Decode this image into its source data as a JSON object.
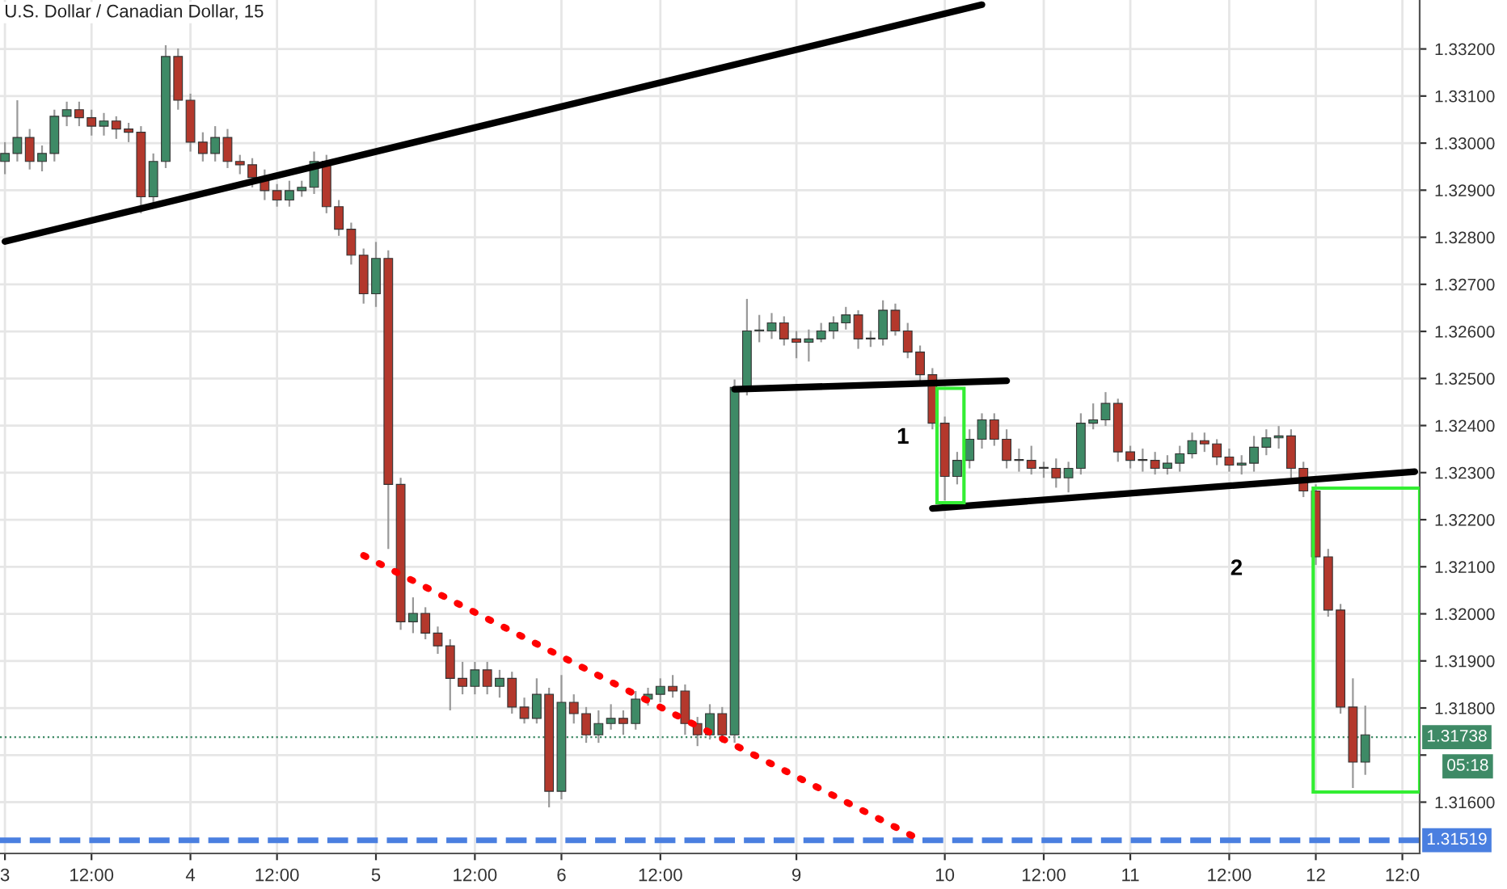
{
  "chart_data": {
    "type": "candlestick",
    "title": "U.S. Dollar / Canadian Dollar, 15",
    "categories": [
      "3",
      null,
      null,
      null,
      null,
      null,
      null,
      "12:00",
      null,
      null,
      null,
      null,
      null,
      null,
      null,
      "4",
      null,
      null,
      null,
      null,
      null,
      null,
      "12:00",
      null,
      null,
      null,
      null,
      null,
      null,
      null,
      "5",
      null,
      null,
      null,
      null,
      null,
      null,
      null,
      "12:00",
      null,
      null,
      null,
      null,
      null,
      null,
      "6",
      null,
      null,
      null,
      null,
      null,
      null,
      null,
      "12:00",
      null,
      null,
      null,
      null,
      null,
      null,
      null,
      null,
      null,
      null,
      "9",
      null,
      null,
      null,
      null,
      null,
      null,
      null,
      null,
      null,
      null,
      null,
      "10",
      null,
      null,
      null,
      null,
      null,
      null,
      null,
      "12:00",
      null,
      null,
      null,
      null,
      null,
      null,
      "11",
      null,
      null,
      null,
      null,
      null,
      null,
      null,
      "12:00",
      null,
      null,
      null,
      null,
      null,
      null,
      "12",
      null,
      null,
      null,
      null,
      null,
      null,
      "12:0",
      null
    ],
    "ohlc": [
      [
        1.32961,
        1.33002,
        1.32934,
        1.32978
      ],
      [
        1.32978,
        1.33091,
        1.32961,
        1.33012
      ],
      [
        1.33012,
        1.3303,
        1.32944,
        1.32961
      ],
      [
        1.32961,
        1.32995,
        1.3294,
        1.32978
      ],
      [
        1.32978,
        1.33071,
        1.32961,
        1.33057
      ],
      [
        1.33057,
        1.33088,
        1.33036,
        1.33071
      ],
      [
        1.33071,
        1.33088,
        1.33036,
        1.33054
      ],
      [
        1.33054,
        1.33071,
        1.33016,
        1.33036
      ],
      [
        1.33036,
        1.33064,
        1.33016,
        1.33047
      ],
      [
        1.33047,
        1.33057,
        1.33009,
        1.3303
      ],
      [
        1.3303,
        1.33043,
        1.33002,
        1.33023
      ],
      [
        1.33023,
        1.33036,
        1.32851,
        1.32886
      ],
      [
        1.32886,
        1.32978,
        1.32865,
        1.32961
      ],
      [
        1.32961,
        1.33208,
        1.32947,
        1.33184
      ],
      [
        1.33184,
        1.33201,
        1.33071,
        1.33091
      ],
      [
        1.33091,
        1.33105,
        1.32982,
        1.33002
      ],
      [
        1.33002,
        1.33023,
        1.32961,
        1.32978
      ],
      [
        1.32978,
        1.33036,
        1.32961,
        1.33012
      ],
      [
        1.33012,
        1.3303,
        1.32947,
        1.32961
      ],
      [
        1.32961,
        1.32975,
        1.32934,
        1.32954
      ],
      [
        1.32954,
        1.32968,
        1.32906,
        1.32927
      ],
      [
        1.32927,
        1.32944,
        1.32879,
        1.32899
      ],
      [
        1.32899,
        1.32913,
        1.32865,
        1.32879
      ],
      [
        1.32879,
        1.3292,
        1.32865,
        1.32899
      ],
      [
        1.32899,
        1.3292,
        1.32886,
        1.32906
      ],
      [
        1.32906,
        1.32982,
        1.32892,
        1.32961
      ],
      [
        1.32961,
        1.32975,
        1.32851,
        1.32865
      ],
      [
        1.32865,
        1.32879,
        1.32803,
        1.32817
      ],
      [
        1.32817,
        1.32831,
        1.32742,
        1.32762
      ],
      [
        1.32762,
        1.32776,
        1.32659,
        1.3268
      ],
      [
        1.3268,
        1.3279,
        1.32652,
        1.32755
      ],
      [
        1.32755,
        1.32772,
        1.32138,
        1.32275
      ],
      [
        1.32275,
        1.32289,
        1.31966,
        1.31983
      ],
      [
        1.31983,
        1.32035,
        1.31959,
        1.32001
      ],
      [
        1.32001,
        1.32014,
        1.31946,
        1.31959
      ],
      [
        1.31959,
        1.31973,
        1.31915,
        1.31932
      ],
      [
        1.31932,
        1.31946,
        1.31795,
        1.31863
      ],
      [
        1.31863,
        1.31898,
        1.31829,
        1.31846
      ],
      [
        1.31846,
        1.31898,
        1.31829,
        1.31881
      ],
      [
        1.31881,
        1.31898,
        1.31829,
        1.31846
      ],
      [
        1.31846,
        1.31881,
        1.31822,
        1.31863
      ],
      [
        1.31863,
        1.31877,
        1.31788,
        1.31802
      ],
      [
        1.31802,
        1.31822,
        1.31767,
        1.31778
      ],
      [
        1.31778,
        1.31863,
        1.31767,
        1.31829
      ],
      [
        1.31829,
        1.31843,
        1.31589,
        1.31623
      ],
      [
        1.31623,
        1.3187,
        1.31606,
        1.31812
      ],
      [
        1.31812,
        1.31829,
        1.31767,
        1.31788
      ],
      [
        1.31788,
        1.31802,
        1.31726,
        1.31743
      ],
      [
        1.31743,
        1.31795,
        1.31726,
        1.31767
      ],
      [
        1.31767,
        1.31808,
        1.31754,
        1.31778
      ],
      [
        1.31778,
        1.31795,
        1.31743,
        1.31767
      ],
      [
        1.31767,
        1.31836,
        1.31754,
        1.31819
      ],
      [
        1.31819,
        1.31843,
        1.31805,
        1.31829
      ],
      [
        1.31829,
        1.31863,
        1.31812,
        1.31846
      ],
      [
        1.31846,
        1.3187,
        1.31822,
        1.31836
      ],
      [
        1.31836,
        1.3185,
        1.31743,
        1.31767
      ],
      [
        1.31767,
        1.31781,
        1.31719,
        1.31743
      ],
      [
        1.31743,
        1.31808,
        1.31733,
        1.31788
      ],
      [
        1.31788,
        1.31802,
        1.31726,
        1.31743
      ],
      [
        1.31743,
        1.32498,
        1.31726,
        1.32481
      ],
      [
        1.32481,
        1.32669,
        1.32464,
        1.32601
      ],
      [
        1.32601,
        1.32635,
        1.32577,
        1.32601
      ],
      [
        1.32601,
        1.32639,
        1.32584,
        1.32618
      ],
      [
        1.32618,
        1.32632,
        1.3257,
        1.32584
      ],
      [
        1.32584,
        1.32601,
        1.32543,
        1.32577
      ],
      [
        1.32577,
        1.32604,
        1.32536,
        1.32584
      ],
      [
        1.32584,
        1.32618,
        1.32577,
        1.32601
      ],
      [
        1.32601,
        1.32632,
        1.32584,
        1.32618
      ],
      [
        1.32618,
        1.32652,
        1.32604,
        1.32635
      ],
      [
        1.32635,
        1.32645,
        1.32563,
        1.32584
      ],
      [
        1.32584,
        1.32601,
        1.32567,
        1.32584
      ],
      [
        1.32584,
        1.32666,
        1.3257,
        1.32645
      ],
      [
        1.32645,
        1.32659,
        1.32591,
        1.32601
      ],
      [
        1.32601,
        1.32618,
        1.32543,
        1.32556
      ],
      [
        1.32556,
        1.3257,
        1.32495,
        1.32508
      ],
      [
        1.32508,
        1.32522,
        1.32392,
        1.32405
      ],
      [
        1.32405,
        1.32419,
        1.32241,
        1.32292
      ],
      [
        1.32292,
        1.32344,
        1.32275,
        1.32326
      ],
      [
        1.32326,
        1.32392,
        1.32309,
        1.32371
      ],
      [
        1.32371,
        1.32426,
        1.32351,
        1.32412
      ],
      [
        1.32412,
        1.32426,
        1.32357,
        1.32371
      ],
      [
        1.32371,
        1.32392,
        1.32309,
        1.32326
      ],
      [
        1.32326,
        1.32351,
        1.32302,
        1.32326
      ],
      [
        1.32326,
        1.32357,
        1.32296,
        1.32309
      ],
      [
        1.32309,
        1.32323,
        1.32289,
        1.32309
      ],
      [
        1.32309,
        1.3233,
        1.32268,
        1.32289
      ],
      [
        1.32289,
        1.32323,
        1.32258,
        1.32309
      ],
      [
        1.32309,
        1.32426,
        1.32296,
        1.32405
      ],
      [
        1.32405,
        1.32447,
        1.32392,
        1.32412
      ],
      [
        1.32412,
        1.32471,
        1.32399,
        1.32447
      ],
      [
        1.32447,
        1.32457,
        1.32323,
        1.32344
      ],
      [
        1.32344,
        1.32357,
        1.32309,
        1.32326
      ],
      [
        1.32326,
        1.32351,
        1.32302,
        1.32326
      ],
      [
        1.32326,
        1.32344,
        1.32296,
        1.32309
      ],
      [
        1.32309,
        1.32337,
        1.32296,
        1.3232
      ],
      [
        1.3232,
        1.32357,
        1.32302,
        1.3234
      ],
      [
        1.3234,
        1.32385,
        1.3233,
        1.32368
      ],
      [
        1.32368,
        1.32385,
        1.32344,
        1.32361
      ],
      [
        1.32361,
        1.32371,
        1.32316,
        1.32333
      ],
      [
        1.32333,
        1.32351,
        1.32302,
        1.32316
      ],
      [
        1.32316,
        1.32337,
        1.32296,
        1.3232
      ],
      [
        1.3232,
        1.32378,
        1.32302,
        1.32354
      ],
      [
        1.32354,
        1.32392,
        1.32337,
        1.32374
      ],
      [
        1.32374,
        1.32399,
        1.32351,
        1.32378
      ],
      [
        1.32378,
        1.32392,
        1.32289,
        1.32309
      ],
      [
        1.32309,
        1.32323,
        1.32248,
        1.32261
      ],
      [
        1.32261,
        1.32275,
        1.32104,
        1.32121
      ],
      [
        1.32121,
        1.32138,
        1.31994,
        1.32008
      ],
      [
        1.32008,
        1.32021,
        1.31788,
        1.31802
      ],
      [
        1.31802,
        1.31863,
        1.3163,
        1.31685
      ],
      [
        1.31685,
        1.31805,
        1.31658,
        1.31743
      ],
      null,
      null,
      null,
      null
    ],
    "colors": [
      "#3e8a66",
      "#3e8a66",
      "#b3382c",
      "#3e8a66",
      "#3e8a66",
      "#3e8a66",
      "#b3382c",
      "#b3382c",
      "#3e8a66",
      "#b3382c",
      "#b3382c",
      "#b3382c",
      "#3e8a66",
      "#3e8a66",
      "#b3382c",
      "#b3382c",
      "#b3382c",
      "#3e8a66",
      "#b3382c",
      "#b3382c",
      "#b3382c",
      "#b3382c",
      "#b3382c",
      "#3e8a66",
      "#3e8a66",
      "#3e8a66",
      "#b3382c",
      "#b3382c",
      "#b3382c",
      "#b3382c",
      "#3e8a66",
      "#b3382c",
      "#b3382c",
      "#3e8a66",
      "#b3382c",
      "#b3382c",
      "#b3382c",
      "#b3382c",
      "#3e8a66",
      "#b3382c",
      "#3e8a66",
      "#b3382c",
      "#b3382c",
      "#3e8a66",
      "#b3382c",
      "#3e8a66",
      "#b3382c",
      "#b3382c",
      "#3e8a66",
      "#3e8a66",
      "#b3382c",
      "#3e8a66",
      "#3e8a66",
      "#3e8a66",
      "#b3382c",
      "#b3382c",
      "#b3382c",
      "#3e8a66",
      "#b3382c",
      "#3e8a66",
      "#3e8a66",
      "#3e8a66",
      "#3e8a66",
      "#b3382c",
      "#b3382c",
      "#3e8a66",
      "#3e8a66",
      "#3e8a66",
      "#3e8a66",
      "#b3382c",
      "#3e8a66",
      "#3e8a66",
      "#b3382c",
      "#b3382c",
      "#b3382c",
      "#b3382c",
      "#b3382c",
      "#3e8a66",
      "#3e8a66",
      "#3e8a66",
      "#b3382c",
      "#b3382c",
      "#3e8a66",
      "#b3382c",
      "#3e8a66",
      "#b3382c",
      "#3e8a66",
      "#3e8a66",
      "#3e8a66",
      "#3e8a66",
      "#b3382c",
      "#b3382c",
      "#3e8a66",
      "#b3382c",
      "#3e8a66",
      "#3e8a66",
      "#3e8a66",
      "#b3382c",
      "#b3382c",
      "#b3382c",
      "#3e8a66",
      "#3e8a66",
      "#3e8a66",
      "#3e8a66",
      "#b3382c",
      "#b3382c",
      "#b3382c",
      "#b3382c",
      "#b3382c",
      "#b3382c",
      "#3e8a66",
      null,
      null,
      null,
      null
    ],
    "series": [
      {
        "type": "line",
        "values": [
          1.32791,
          null,
          null,
          null,
          null,
          null,
          null,
          null,
          null,
          null,
          null,
          null,
          null,
          null,
          null,
          null,
          null,
          null,
          null,
          null,
          null,
          null,
          null,
          null,
          null,
          null,
          null,
          null,
          null,
          null,
          null,
          null,
          null,
          null,
          null,
          null,
          null,
          null,
          null,
          null,
          null,
          null,
          null,
          null,
          null,
          null,
          null,
          null,
          null,
          null,
          null,
          null,
          null,
          null,
          null,
          null,
          null,
          null,
          null,
          null,
          null,
          null,
          null,
          null,
          null,
          null,
          null,
          null,
          null,
          null,
          null,
          null,
          null,
          null,
          null,
          null,
          null,
          null,
          null,
          1.33294,
          null,
          null,
          null,
          null,
          null,
          null,
          null,
          null,
          null,
          null,
          null,
          null,
          null,
          null,
          null,
          null,
          null,
          null,
          null,
          null,
          null,
          null,
          null,
          null,
          null,
          null,
          null,
          null,
          null,
          null,
          null,
          null,
          null,
          null,
          null
        ],
        "color": "#000000"
      },
      {
        "type": "line",
        "values": [
          null,
          null,
          null,
          null,
          null,
          null,
          null,
          null,
          null,
          null,
          null,
          null,
          null,
          null,
          null,
          null,
          null,
          null,
          null,
          null,
          null,
          null,
          null,
          null,
          null,
          null,
          null,
          null,
          null,
          null,
          null,
          null,
          null,
          null,
          null,
          null,
          null,
          null,
          null,
          null,
          null,
          null,
          null,
          null,
          null,
          null,
          null,
          null,
          null,
          null,
          null,
          null,
          null,
          null,
          null,
          null,
          null,
          null,
          null,
          1.32477,
          null,
          null,
          null,
          null,
          null,
          null,
          null,
          null,
          null,
          null,
          null,
          null,
          null,
          null,
          null,
          null,
          null,
          null,
          null,
          null,
          null,
          1.32495,
          null,
          null,
          null,
          null,
          null,
          null,
          null,
          null,
          null,
          null,
          null,
          null,
          null,
          null,
          null,
          null,
          null,
          null,
          null,
          null,
          null,
          null,
          null,
          null,
          null,
          null,
          null,
          null,
          null,
          null,
          null,
          null,
          null
        ],
        "color": "#000000"
      },
      {
        "type": "line",
        "values": [
          null,
          null,
          null,
          null,
          null,
          null,
          null,
          null,
          null,
          null,
          null,
          null,
          null,
          null,
          null,
          null,
          null,
          null,
          null,
          null,
          null,
          null,
          null,
          null,
          null,
          null,
          null,
          null,
          null,
          null,
          null,
          null,
          null,
          null,
          null,
          null,
          null,
          null,
          null,
          null,
          null,
          null,
          null,
          null,
          null,
          null,
          null,
          null,
          null,
          null,
          null,
          null,
          null,
          null,
          null,
          null,
          null,
          null,
          null,
          null,
          null,
          null,
          null,
          null,
          null,
          null,
          null,
          null,
          null,
          null,
          null,
          null,
          null,
          null,
          null,
          1.32224,
          null,
          null,
          null,
          null,
          null,
          null,
          null,
          null,
          null,
          null,
          null,
          null,
          null,
          null,
          null,
          null,
          null,
          null,
          null,
          null,
          null,
          null,
          null,
          null,
          null,
          null,
          null,
          null,
          null,
          null,
          null,
          null,
          null,
          null,
          null,
          null,
          null,
          null,
          1.32302
        ],
        "color": "#000000"
      },
      {
        "type": "line",
        "values": [
          null,
          null,
          null,
          null,
          null,
          null,
          null,
          null,
          null,
          null,
          null,
          null,
          null,
          null,
          null,
          null,
          null,
          null,
          null,
          null,
          null,
          null,
          null,
          null,
          null,
          null,
          null,
          null,
          null,
          1.32124,
          null,
          null,
          null,
          null,
          null,
          null,
          null,
          null,
          null,
          null,
          null,
          null,
          null,
          null,
          null,
          null,
          null,
          null,
          null,
          null,
          null,
          null,
          null,
          null,
          null,
          null,
          null,
          null,
          null,
          null,
          null,
          null,
          null,
          null,
          null,
          null,
          null,
          null,
          null,
          null,
          null,
          null,
          null,
          null,
          1.3152,
          null,
          null,
          null,
          null,
          null,
          null,
          null,
          null,
          null,
          null,
          null,
          null,
          null,
          null,
          null,
          null,
          null,
          null,
          null,
          null,
          null,
          null,
          null,
          null,
          null,
          null,
          null,
          null,
          null,
          null,
          null,
          null,
          null,
          null,
          null,
          null,
          null,
          null,
          null,
          null
        ],
        "color": "#ff0000",
        "line_style": "dotted"
      }
    ],
    "ylim": [
      1.31491,
      1.33304
    ],
    "yticks": [
      {
        "value": 1.316,
        "label": "1.31600"
      },
      {
        "value": 1.317,
        "label": null
      },
      {
        "value": 1.318,
        "label": "1.31800"
      },
      {
        "value": 1.319,
        "label": "1.31900"
      },
      {
        "value": 1.32,
        "label": "1.32000"
      },
      {
        "value": 1.321,
        "label": "1.32100"
      },
      {
        "value": 1.322,
        "label": "1.32200"
      },
      {
        "value": 1.323,
        "label": "1.32300"
      },
      {
        "value": 1.324,
        "label": "1.32400"
      },
      {
        "value": 1.325,
        "label": "1.32500"
      },
      {
        "value": 1.326,
        "label": "1.32600"
      },
      {
        "value": 1.327,
        "label": "1.32700"
      },
      {
        "value": 1.328,
        "label": "1.32800"
      },
      {
        "value": 1.329,
        "label": "1.32900"
      },
      {
        "value": 1.33,
        "label": "1.33000"
      },
      {
        "value": 1.331,
        "label": "1.33100"
      },
      {
        "value": 1.332,
        "label": "1.33200"
      }
    ],
    "ref_lines": [
      {
        "axis": "y",
        "value": 1.31738,
        "label": "1.31738",
        "color": "#3e8a66",
        "line_style": "dotted"
      },
      {
        "axis": "y",
        "value": 1.31519,
        "label": "1.31519",
        "color": "#4a7fe0",
        "line_style": "dashed"
      }
    ],
    "annotations": [
      "1",
      "2",
      "05:18"
    ],
    "grid": true
  }
}
